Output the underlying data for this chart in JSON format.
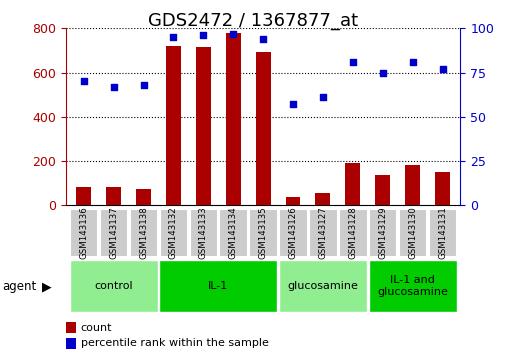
{
  "title": "GDS2472 / 1367877_at",
  "samples": [
    "GSM143136",
    "GSM143137",
    "GSM143138",
    "GSM143132",
    "GSM143133",
    "GSM143134",
    "GSM143135",
    "GSM143126",
    "GSM143127",
    "GSM143128",
    "GSM143129",
    "GSM143130",
    "GSM143131"
  ],
  "counts": [
    85,
    82,
    75,
    720,
    715,
    780,
    695,
    38,
    55,
    190,
    135,
    182,
    150
  ],
  "percentile_ranks": [
    70,
    67,
    68,
    95,
    96,
    97,
    94,
    57,
    61,
    81,
    75,
    81,
    77
  ],
  "groups": [
    {
      "label": "control",
      "start": 0,
      "end": 3,
      "color": "#90EE90"
    },
    {
      "label": "IL-1",
      "start": 3,
      "end": 7,
      "color": "#00CC00"
    },
    {
      "label": "glucosamine",
      "start": 7,
      "end": 10,
      "color": "#90EE90"
    },
    {
      "label": "IL-1 and\nglucosamine",
      "start": 10,
      "end": 13,
      "color": "#00CC00"
    }
  ],
  "bar_color": "#AA0000",
  "dot_color": "#0000CC",
  "left_axis_color": "#AA0000",
  "right_axis_color": "#0000CC",
  "ylim_left": [
    0,
    800
  ],
  "ylim_right": [
    0,
    100
  ],
  "yticks_left": [
    0,
    200,
    400,
    600,
    800
  ],
  "yticks_right": [
    0,
    25,
    50,
    75,
    100
  ],
  "title_fontsize": 13,
  "tick_fontsize": 9,
  "agent_label": "agent"
}
